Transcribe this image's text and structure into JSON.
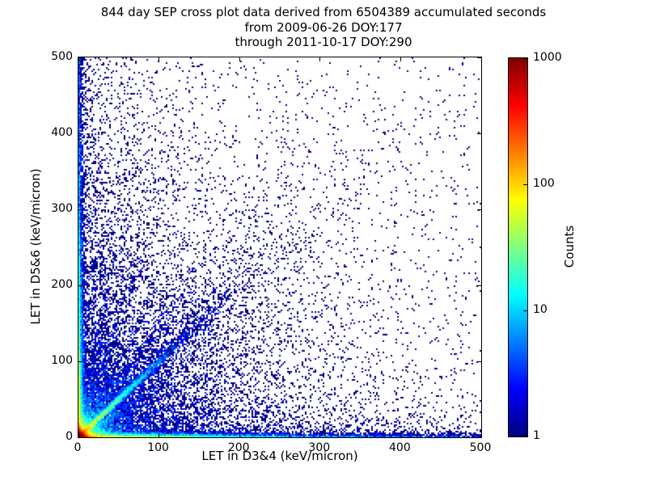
{
  "chart_data": {
    "type": "scatter",
    "subtype": "2d-density-histogram",
    "title": "844 day SEP cross plot data derived from 6504389 accumulated seconds",
    "title_lines": [
      "844 day SEP cross plot data derived from 6504389 accumulated seconds",
      "from 2009-06-26 DOY:177",
      "through 2011-10-17 DOY:290"
    ],
    "xlabel": "LET in D3&4 (keV/micron)",
    "ylabel": "LET in D5&6 (keV/micron)",
    "xlim": [
      0,
      500
    ],
    "ylim": [
      0,
      500
    ],
    "x_ticks": [
      0,
      100,
      200,
      300,
      400,
      500
    ],
    "y_ticks": [
      0,
      100,
      200,
      300,
      400,
      500
    ],
    "grid": false,
    "legend": "none",
    "colorbar": {
      "label": "Counts",
      "scale": "log",
      "min": 1,
      "max": 1000,
      "ticks": [
        1,
        10,
        100,
        1000
      ],
      "colormap": "jet"
    },
    "colors": {
      "background": "#ffffff",
      "frame": "#000000",
      "single_count_marker": "#000080",
      "peak_marker": "#800000"
    },
    "distribution": {
      "description": "Dense hot spot at origin reaching >1000 counts, bright diagonal y=x streak, dense bands hugging both axes, several faint rays fanning out from the origin, broad blue diagonal cloud, diffuse low-count scatter across lower-left and upper-left regions",
      "seed": 7,
      "marker_px": 2,
      "components": [
        {
          "name": "origin-core",
          "n": 18000,
          "x": {
            "dist": "exp",
            "scale": 2.5
          },
          "y": {
            "dist": "exp",
            "scale": 2.5
          }
        },
        {
          "name": "origin-halo",
          "n": 7000,
          "x": {
            "dist": "exp",
            "scale": 8
          },
          "y": {
            "dist": "exp",
            "scale": 8
          }
        },
        {
          "name": "diagonal-streak",
          "n": 5000,
          "polar": true,
          "angle_deg": 45,
          "r": {
            "dist": "exp",
            "scale": 55
          },
          "lateral_base": 1.0,
          "lateral_slope": 0.015
        },
        {
          "name": "diagonal-cloud",
          "n": 2600,
          "polar": true,
          "angle_deg": 45,
          "r": {
            "dist": "exp",
            "scale": 170
          },
          "lateral_base": 2.0,
          "lateral_slope": 0.1
        },
        {
          "name": "x-axis-band",
          "n": 6000,
          "x": {
            "dist": "exp",
            "scale": 90
          },
          "y": {
            "dist": "exp",
            "scale": 2.0
          }
        },
        {
          "name": "x-axis-band-far",
          "n": 1100,
          "x": {
            "dist": "uniform",
            "min": 0,
            "max": 500
          },
          "y": {
            "dist": "exp",
            "scale": 2.5
          }
        },
        {
          "name": "y-axis-band",
          "n": 6000,
          "x": {
            "dist": "exp",
            "scale": 1.8
          },
          "y": {
            "dist": "exp",
            "scale": 110
          }
        },
        {
          "name": "y-axis-band-far",
          "n": 900,
          "x": {
            "dist": "exp",
            "scale": 2.2
          },
          "y": {
            "dist": "uniform",
            "min": 0,
            "max": 500
          }
        },
        {
          "name": "left-fan",
          "n": 3000,
          "x": {
            "dist": "exp",
            "scale": 30
          },
          "y": {
            "dist": "exp",
            "scale": 230
          }
        },
        {
          "name": "bottom-fan",
          "n": 1800,
          "x": {
            "dist": "exp",
            "scale": 200
          },
          "y": {
            "dist": "exp",
            "scale": 18
          }
        },
        {
          "name": "ray-10deg",
          "n": 500,
          "polar": true,
          "angle_deg": 10,
          "r": {
            "dist": "exp",
            "scale": 130
          },
          "lateral_base": 1.0,
          "lateral_slope": 0.03
        },
        {
          "name": "ray-18deg",
          "n": 600,
          "polar": true,
          "angle_deg": 18,
          "r": {
            "dist": "exp",
            "scale": 95
          },
          "lateral_base": 1.0,
          "lateral_slope": 0.03
        },
        {
          "name": "ray-27deg",
          "n": 700,
          "polar": true,
          "angle_deg": 27,
          "r": {
            "dist": "exp",
            "scale": 110
          },
          "lateral_base": 1.0,
          "lateral_slope": 0.03
        },
        {
          "name": "ray-34deg",
          "n": 600,
          "polar": true,
          "angle_deg": 34,
          "r": {
            "dist": "exp",
            "scale": 100
          },
          "lateral_base": 1.0,
          "lateral_slope": 0.03
        },
        {
          "name": "ray-56deg",
          "n": 700,
          "polar": true,
          "angle_deg": 56,
          "r": {
            "dist": "exp",
            "scale": 110
          },
          "lateral_base": 1.0,
          "lateral_slope": 0.03
        },
        {
          "name": "ray-63deg",
          "n": 600,
          "polar": true,
          "angle_deg": 63,
          "r": {
            "dist": "exp",
            "scale": 100
          },
          "lateral_base": 1.0,
          "lateral_slope": 0.03
        },
        {
          "name": "ray-72deg",
          "n": 700,
          "polar": true,
          "angle_deg": 72,
          "r": {
            "dist": "exp",
            "scale": 120
          },
          "lateral_base": 1.0,
          "lateral_slope": 0.03
        },
        {
          "name": "ray-79deg",
          "n": 500,
          "polar": true,
          "angle_deg": 79,
          "r": {
            "dist": "exp",
            "scale": 140
          },
          "lateral_base": 1.0,
          "lateral_slope": 0.03
        },
        {
          "name": "diffuse-lower-left",
          "n": 5000,
          "x": {
            "dist": "exp",
            "scale": 160
          },
          "y": {
            "dist": "exp",
            "scale": 170
          }
        },
        {
          "name": "sparse-uniform",
          "n": 900,
          "x": {
            "dist": "uniform",
            "min": 0,
            "max": 500
          },
          "y": {
            "dist": "uniform",
            "min": 0,
            "max": 500
          }
        }
      ]
    }
  }
}
